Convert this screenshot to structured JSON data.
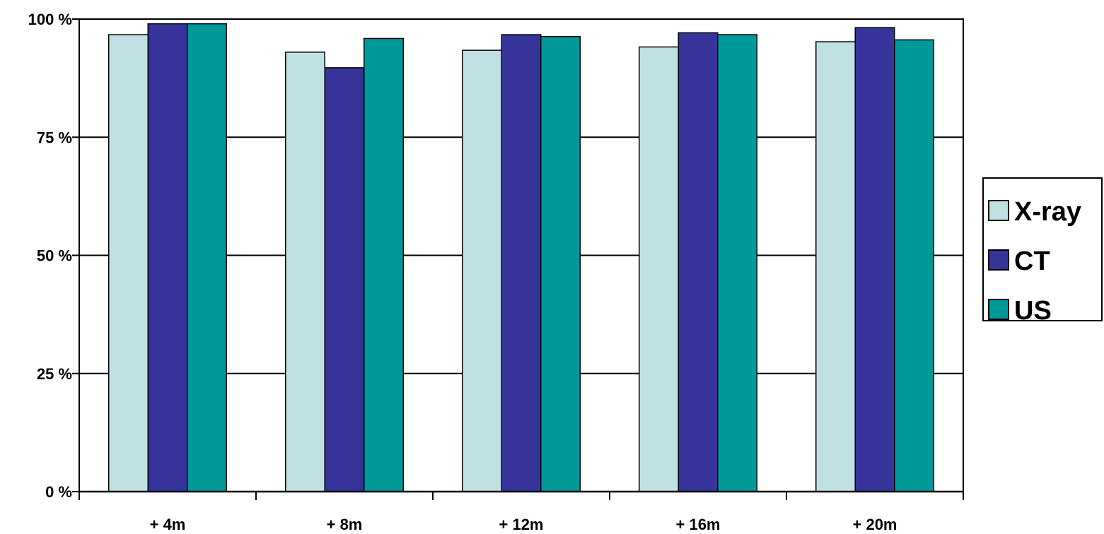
{
  "chart_data": {
    "type": "bar",
    "title": "",
    "xlabel": "",
    "ylabel": "",
    "categories": [
      "+ 4m",
      "+ 8m",
      "+ 12m",
      "+ 16m",
      "+ 20m"
    ],
    "series": [
      {
        "name": "X-ray",
        "color": "#BFE1E3",
        "values": [
          96.7,
          93.0,
          93.4,
          94.1,
          95.2
        ]
      },
      {
        "name": "CT",
        "color": "#36349A",
        "values": [
          99.0,
          89.7,
          96.7,
          97.1,
          98.2
        ]
      },
      {
        "name": "US",
        "color": "#00999A",
        "values": [
          99.0,
          95.9,
          96.3,
          96.7,
          95.6
        ]
      }
    ],
    "ylim": [
      0,
      100
    ],
    "yticks": [
      0,
      25,
      50,
      75,
      100
    ],
    "ytick_labels": [
      "0 %",
      "25 %",
      "50 %",
      "75 %",
      "100 %"
    ],
    "grid": true,
    "legend_position": "right"
  }
}
